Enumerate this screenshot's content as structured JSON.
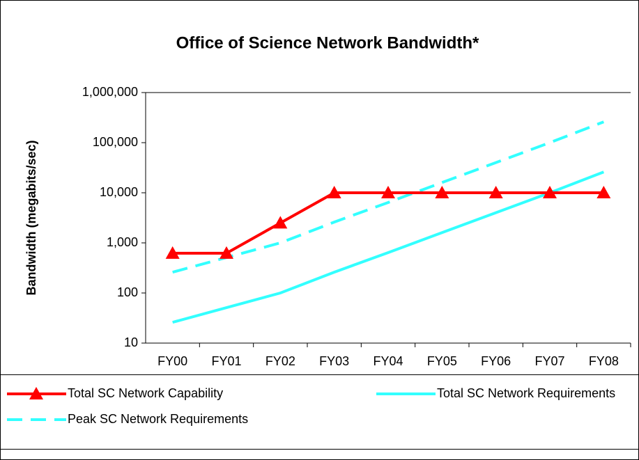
{
  "chart_data": {
    "type": "line",
    "title": "Office of Science Network Bandwidth*",
    "y_label": "Bandwidth (megabits/sec)",
    "categories": [
      "FY00",
      "FY01",
      "FY02",
      "FY03",
      "FY04",
      "FY05",
      "FY06",
      "FY07",
      "FY08"
    ],
    "series": [
      {
        "name": "Total SC Network Capability",
        "color": "#ff0000",
        "marker": "triangle",
        "dashed": false,
        "values": [
          622,
          622,
          2500,
          10000,
          10000,
          10000,
          10000,
          10000,
          10000
        ]
      },
      {
        "name": "Total SC Network Requirements",
        "color": "#33ffff",
        "marker": "none",
        "dashed": false,
        "values": [
          26,
          51,
          100,
          260,
          640,
          1600,
          4000,
          10000,
          26000
        ]
      },
      {
        "name": "Peak SC Network Requirements",
        "color": "#33ffff",
        "marker": "none",
        "dashed": true,
        "values": [
          260,
          510,
          1000,
          2600,
          6400,
          16000,
          40000,
          100000,
          260000
        ]
      }
    ],
    "log_scale": true,
    "ylim": [
      10,
      1000000
    ],
    "yticks": [
      10,
      100,
      {
        "value": 1000,
        "label": "1,000"
      },
      {
        "value": 10000,
        "label": "10,000"
      },
      {
        "value": 100000,
        "label": "100,000"
      },
      {
        "value": 1000000,
        "label": "1,000,000"
      }
    ],
    "grid": false,
    "legend": "bottom"
  }
}
